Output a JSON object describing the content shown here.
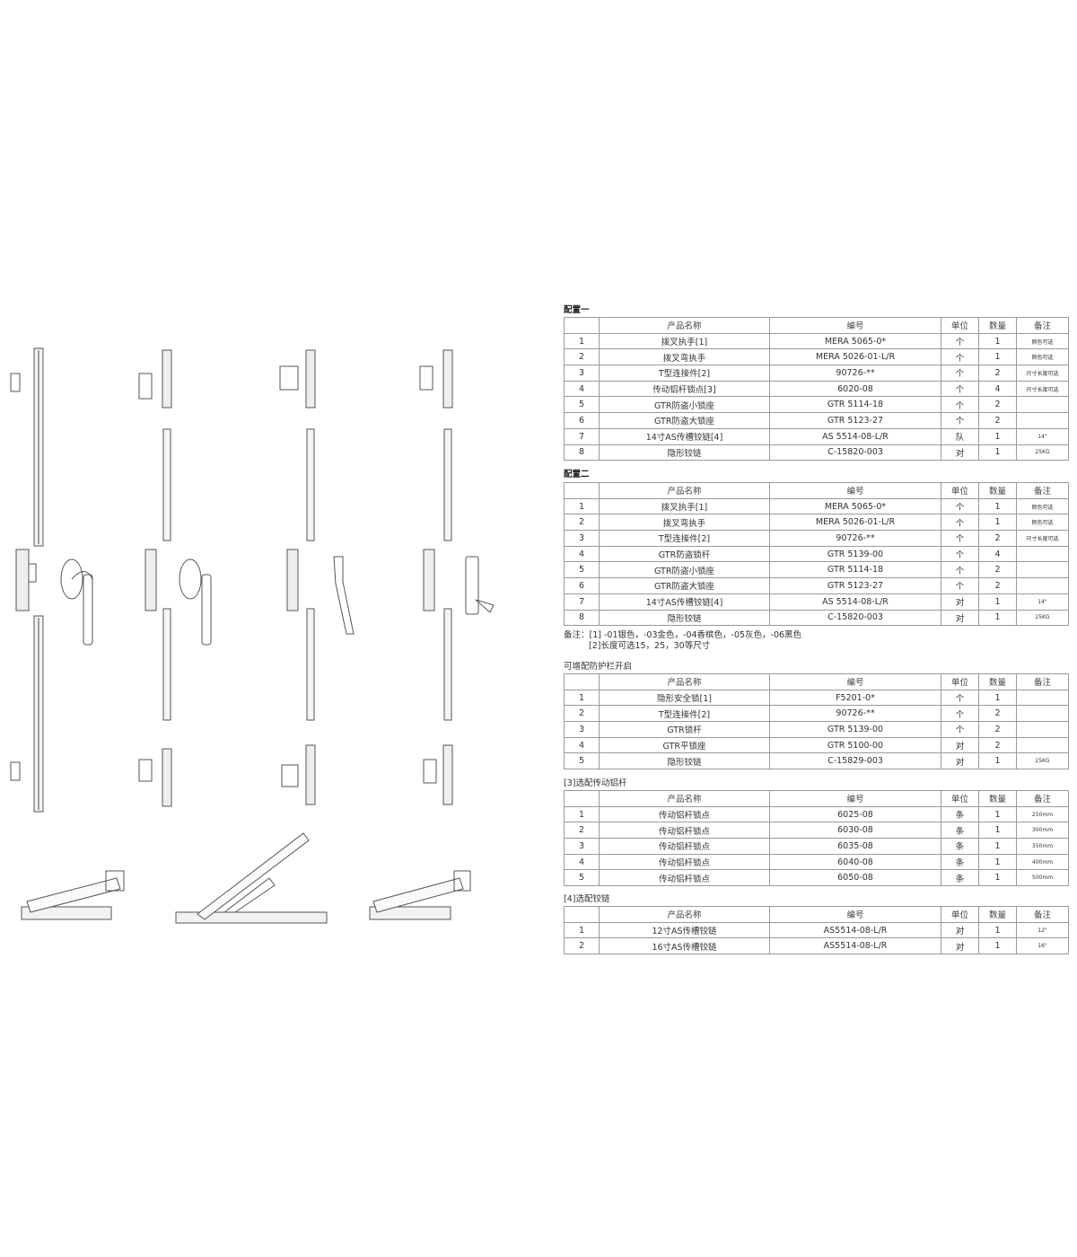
{
  "columns": [
    "",
    "产品名称",
    "编号",
    "单位",
    "数量",
    "备注"
  ],
  "sections": [
    {
      "title": "配置一",
      "bold": true,
      "rows": [
        [
          "1",
          "拨叉执手[1]",
          "MERA 5065-0*",
          "个",
          "1",
          "颜色可选"
        ],
        [
          "2",
          "拨叉弯执手",
          "MERA 5026-01-L/R",
          "个",
          "1",
          "颜色可选"
        ],
        [
          "3",
          "T型连接件[2]",
          "90726-**",
          "个",
          "2",
          "尺寸长度可选"
        ],
        [
          "4",
          "传动铝杆锁点[3]",
          "6020-08",
          "个",
          "4",
          "尺寸长度可选"
        ],
        [
          "5",
          "GTR防盗小锁座",
          "GTR 5114-18",
          "个",
          "2",
          ""
        ],
        [
          "6",
          "GTR防盗大锁座",
          "GTR 5123-27",
          "个",
          "2",
          ""
        ],
        [
          "7",
          "14寸AS传槽铰链[4]",
          "AS 5514-08-L/R",
          "队",
          "1",
          "14\""
        ],
        [
          "8",
          "隐形铰链",
          "C-15820-003",
          "对",
          "1",
          "25KG"
        ]
      ]
    },
    {
      "title": "配置二",
      "bold": true,
      "rows": [
        [
          "1",
          "拨叉执手[1]",
          "MERA 5065-0*",
          "个",
          "1",
          "颜色可选"
        ],
        [
          "2",
          "拨叉弯执手",
          "MERA 5026-01-L/R",
          "个",
          "1",
          "颜色可选"
        ],
        [
          "3",
          "T型连接件[2]",
          "90726-**",
          "个",
          "2",
          "尺寸长度可选"
        ],
        [
          "4",
          "GTR防盗锁杆",
          "GTR 5139-00",
          "个",
          "4",
          ""
        ],
        [
          "5",
          "GTR防盗小锁座",
          "GTR 5114-18",
          "个",
          "2",
          ""
        ],
        [
          "6",
          "GTR防盗大锁座",
          "GTR 5123-27",
          "个",
          "2",
          ""
        ],
        [
          "7",
          "14寸AS传槽铰链[4]",
          "AS 5514-08-L/R",
          "对",
          "1",
          "14\""
        ],
        [
          "8",
          "隐形铰链",
          "C-15820-003",
          "对",
          "1",
          "25KG"
        ]
      ]
    },
    {
      "title": "可增配防护栏开启",
      "bold": false,
      "rows": [
        [
          "1",
          "隐形安全锁[1]",
          "F5201-0*",
          "个",
          "1",
          ""
        ],
        [
          "2",
          "T型连接件[2]",
          "90726-**",
          "个",
          "2",
          ""
        ],
        [
          "3",
          "GTR锁杆",
          "GTR 5139-00",
          "个",
          "2",
          ""
        ],
        [
          "4",
          "GTR平锁座",
          "GTR 5100-00",
          "对",
          "2",
          ""
        ],
        [
          "5",
          "隐形铰链",
          "C-15829-003",
          "对",
          "1",
          "25KG"
        ]
      ]
    },
    {
      "title": "[3]选配传动铝杆",
      "bold": false,
      "rows": [
        [
          "1",
          "传动铝杆锁点",
          "6025-08",
          "条",
          "1",
          "250mm"
        ],
        [
          "2",
          "传动铝杆锁点",
          "6030-08",
          "条",
          "1",
          "300mm"
        ],
        [
          "3",
          "传动铝杆锁点",
          "6035-08",
          "条",
          "1",
          "350mm"
        ],
        [
          "4",
          "传动铝杆锁点",
          "6040-08",
          "条",
          "1",
          "400mm"
        ],
        [
          "5",
          "传动铝杆锁点",
          "6050-08",
          "条",
          "1",
          "500mm"
        ]
      ]
    },
    {
      "title": "[4]选配铰链",
      "bold": false,
      "rows": [
        [
          "1",
          "12寸AS传槽铰链",
          "AS5514-08-L/R",
          "对",
          "1",
          "12\""
        ],
        [
          "2",
          "16寸AS传槽铰链",
          "AS5514-08-L/R",
          "对",
          "1",
          "16\""
        ]
      ]
    }
  ],
  "notes": {
    "line1": "备注：[1] -01银色，-03金色，-04香槟色，-05灰色，-06黑色",
    "line2": "[2]长度可选15，25，30等尺寸"
  },
  "colors": {
    "line": "#9a9a9a",
    "drawing": "#555555"
  }
}
